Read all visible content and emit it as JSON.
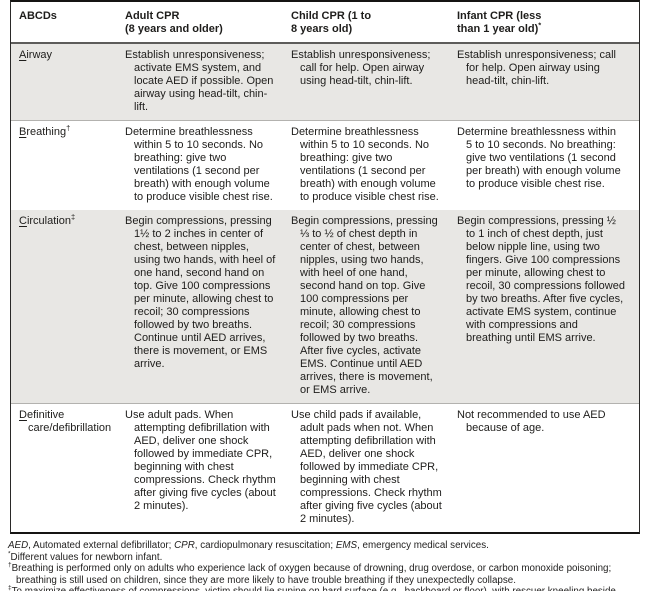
{
  "table": {
    "columns": [
      {
        "key": "abcds",
        "lines": [
          "ABCDs"
        ],
        "sup": ""
      },
      {
        "key": "adult",
        "lines": [
          "Adult CPR",
          "(8 years and older)"
        ],
        "sup": ""
      },
      {
        "key": "child",
        "lines": [
          "Child CPR (1 to",
          "8 years old)"
        ],
        "sup": ""
      },
      {
        "key": "infant",
        "lines": [
          "Infant CPR (less",
          "than 1 year old)"
        ],
        "sup": "*"
      }
    ],
    "rows": [
      {
        "key": "airway",
        "label": "Airway",
        "label_sup": "",
        "shaded": true,
        "cells": [
          "Establish unresponsiveness; activate EMS system, and locate AED if possible. Open airway using head-tilt, chin-lift.",
          "Establish unresponsiveness; call for help. Open airway using head-tilt, chin-lift.",
          "Establish unresponsiveness; call for help. Open airway using head-tilt, chin-lift."
        ]
      },
      {
        "key": "breathing",
        "label": "Breathing",
        "label_sup": "†",
        "shaded": false,
        "cells": [
          "Determine breathlessness within 5 to 10 seconds. No breathing: give two ventilations (1 second per breath) with enough volume to produce visible chest rise.",
          "Determine breathlessness within 5 to 10 seconds. No breathing: give two ventilations (1 second per breath) with enough volume to produce visible chest rise.",
          "Determine breathlessness within 5 to 10 seconds. No breathing: give two ventilations (1 second per breath) with enough volume to produce visible chest rise."
        ]
      },
      {
        "key": "circulation",
        "label": "Circulation",
        "label_sup": "‡",
        "shaded": true,
        "cells": [
          "Begin compressions, pressing 1½ to 2 inches in center of chest, between nipples, using two hands, with heel of one hand, second hand on top. Give 100 compressions per minute, allowing chest to recoil; 30 compressions followed by two breaths. Continue until AED arrives, there is movement, or EMS arrive.",
          "Begin compressions, pressing ⅓ to ½ of chest depth in center of chest, between nipples, using two hands, with heel of one hand, second hand on top. Give 100 compressions per minute, allowing chest to recoil; 30 compressions followed by two breaths. After five cycles, activate EMS. Continue until AED arrives, there is movement, or EMS arrive.",
          "Begin compressions, pressing ½ to 1 inch of chest depth, just below nipple line, using two fingers. Give 100 compressions per minute, allowing chest to recoil, 30 compressions followed by two breaths. After five cycles, activate EMS system, continue with compressions and breathing until EMS arrive."
        ]
      },
      {
        "key": "definitive-care",
        "label": "Definitive care/defibrillation",
        "label_sup": "",
        "shaded": false,
        "cells": [
          "Use adult pads. When attempting defibrillation with AED, deliver one shock followed by immediate CPR, beginning with chest compressions. Check rhythm after giving five cycles (about 2 minutes).",
          "Use child pads if available, adult pads when not. When attempting defibrillation with AED, deliver one shock followed by immediate CPR, beginning with chest compressions. Check rhythm after giving five cycles (about 2 minutes).",
          "Not recommended to use AED because of age."
        ]
      }
    ]
  },
  "footnotes": [
    [
      {
        "text": "AED",
        "italic": true
      },
      {
        "text": ", Automated external defibrillator; "
      },
      {
        "text": "CPR",
        "italic": true
      },
      {
        "text": ", cardiopulmonary resuscitation; "
      },
      {
        "text": "EMS",
        "italic": true
      },
      {
        "text": ", emergency medical services."
      }
    ],
    [
      {
        "text": "*",
        "sup": true
      },
      {
        "text": "Different values for newborn infant."
      }
    ],
    [
      {
        "text": "†",
        "sup": true
      },
      {
        "text": "Breathing is performed only on adults who experience lack of oxygen because of drowning, drug overdose, or carbon monoxide poisoning; breathing is still used on children, since they are more likely to have trouble breathing if they unexpectedly collapse."
      }
    ],
    [
      {
        "text": "‡",
        "sup": true
      },
      {
        "text": "To maximize effectiveness of compressions, victim should lie supine on hard surface (e.g., backboard or floor), with rescuer kneeling beside victim's thorax."
      }
    ]
  ],
  "colors": {
    "row_shade": "#e8e7e4",
    "table_border": "#151413",
    "header_rule": "#5d5c5a",
    "text": "#1e1d1b"
  }
}
